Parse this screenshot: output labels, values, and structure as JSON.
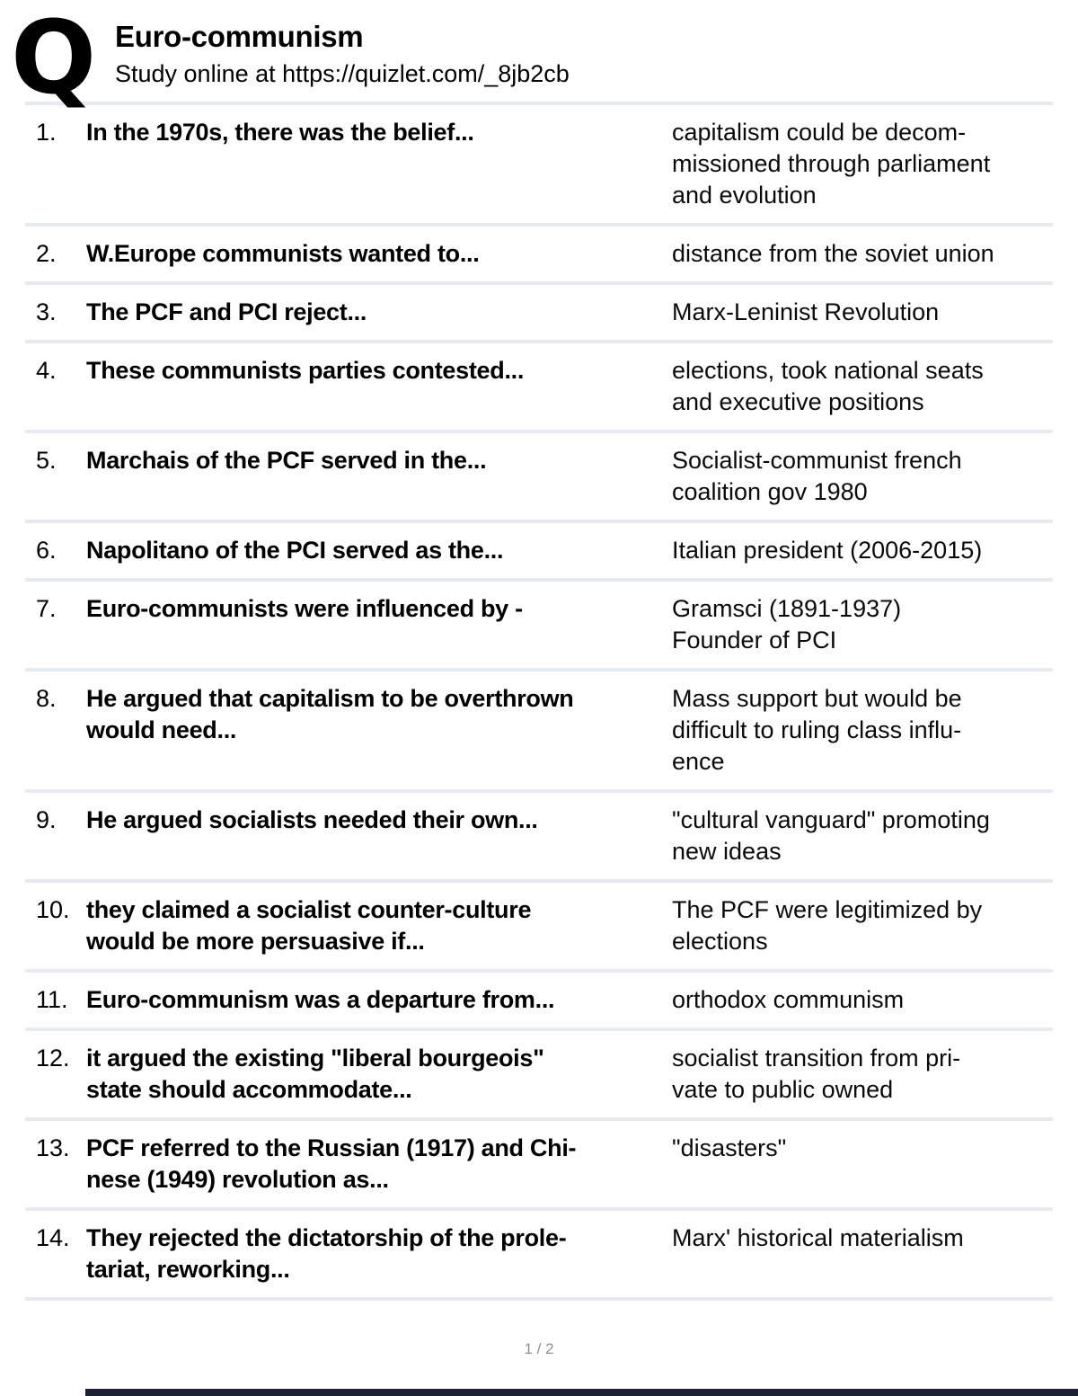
{
  "header": {
    "logo_glyph": "Q",
    "logo_name": "quizlet-logo",
    "title": "Euro-communism",
    "subtitle": "Study online at https://quizlet.com/_8jb2cb"
  },
  "cards": [
    {
      "num": "1.",
      "question": "In the 1970s, there was the belief...",
      "answer": "capitalism could be decom-\nmissioned through parliament\nand evolution"
    },
    {
      "num": "2.",
      "question": "W.Europe communists wanted to...",
      "answer": "distance from the soviet union"
    },
    {
      "num": "3.",
      "question": "The PCF and PCI reject...",
      "answer": "Marx-Leninist Revolution"
    },
    {
      "num": "4.",
      "question": "These communists parties contested...",
      "answer": "elections, took national seats\nand executive positions"
    },
    {
      "num": "5.",
      "question": "Marchais of the PCF served in the...",
      "answer": "Socialist-communist french\ncoalition gov 1980"
    },
    {
      "num": "6.",
      "question": "Napolitano of the PCI served as the...",
      "answer": "Italian president (2006-2015)"
    },
    {
      "num": "7.",
      "question": "Euro-communists were influenced by -",
      "answer": "Gramsci (1891-1937)\nFounder of PCI"
    },
    {
      "num": "8.",
      "question": "He argued that capitalism to be overthrown\nwould need...",
      "answer": "Mass support but would be\ndifficult to ruling class influ-\nence"
    },
    {
      "num": "9.",
      "question": "He argued socialists needed their own...",
      "answer": "\"cultural vanguard\" promoting\nnew ideas"
    },
    {
      "num": "10.",
      "question": "they claimed a socialist counter-culture\nwould be more persuasive if...",
      "answer": "The PCF were legitimized by\nelections"
    },
    {
      "num": "11.",
      "question": "Euro-communism was a departure from...",
      "answer": "orthodox communism"
    },
    {
      "num": "12.",
      "question": "it argued the existing \"liberal bourgeois\"\nstate should accommodate...",
      "answer": "socialist transition from pri-\nvate to public owned"
    },
    {
      "num": "13.",
      "question": "PCF referred to the Russian (1917) and Chi-\nnese (1949) revolution as...",
      "answer": "\"disasters\""
    },
    {
      "num": "14.",
      "question": "They rejected the dictatorship of the prole-\ntariat, reworking...",
      "answer": "Marx' historical materialism"
    }
  ],
  "footer": {
    "page_indicator": "1 / 2"
  },
  "colors": {
    "divider": "#e8eaf2",
    "bottom_bar": "#1b2133",
    "page_indicator_text": "#8f8f8f",
    "text": "#000000"
  }
}
